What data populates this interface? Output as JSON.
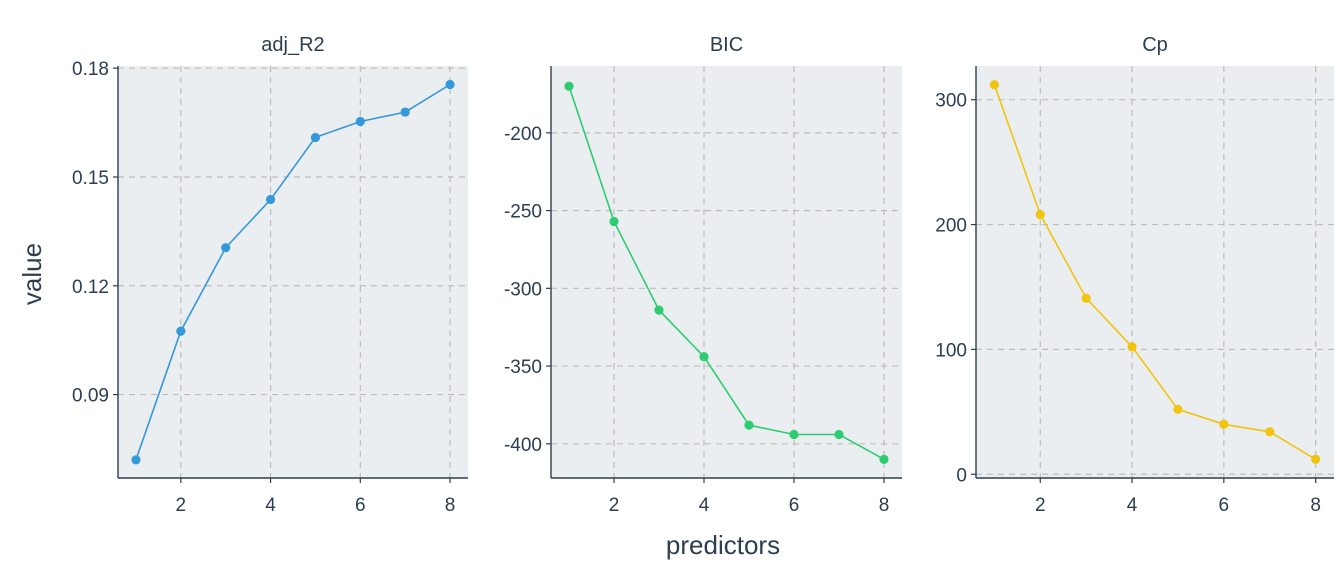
{
  "chart_data": {
    "type": "line",
    "xlabel": "predictors",
    "ylabel": "value",
    "grid": true,
    "panels": [
      {
        "name": "adj_R2",
        "color": "#3498db",
        "x": [
          1,
          2,
          3,
          4,
          5,
          6,
          7,
          8
        ],
        "values": [
          0.072,
          0.1075,
          0.1305,
          0.1438,
          0.1609,
          0.1653,
          0.1679,
          0.1755
        ],
        "xticks": [
          2,
          4,
          6,
          8
        ],
        "yticks": [
          0.09,
          0.12,
          0.15,
          0.18
        ],
        "ytick_labels": [
          "0.09",
          "0.12",
          "0.15",
          "0.18"
        ],
        "xlim": [
          0.6,
          8.4
        ],
        "ylim": [
          0.067,
          0.1806
        ]
      },
      {
        "name": "BIC",
        "color": "#2ecc71",
        "x": [
          1,
          2,
          3,
          4,
          5,
          6,
          7,
          8
        ],
        "values": [
          -170,
          -257,
          -314,
          -344,
          -388,
          -394,
          -394,
          -410
        ],
        "xticks": [
          2,
          4,
          6,
          8
        ],
        "yticks": [
          -400,
          -350,
          -300,
          -250,
          -200
        ],
        "ytick_labels": [
          "-400",
          "-350",
          "-300",
          "-250",
          "-200"
        ],
        "xlim": [
          0.6,
          8.4
        ],
        "ylim": [
          -422,
          -157
        ]
      },
      {
        "name": "Cp",
        "color": "#f1c40f",
        "x": [
          1,
          2,
          3,
          4,
          5,
          6,
          7,
          8
        ],
        "values": [
          312,
          208,
          141,
          102,
          52,
          40,
          34,
          12
        ],
        "xticks": [
          2,
          4,
          6,
          8
        ],
        "yticks": [
          0,
          100,
          200,
          300
        ],
        "ytick_labels": [
          "0",
          "100",
          "200",
          "300"
        ],
        "xlim": [
          0.6,
          8.4
        ],
        "ylim": [
          -3,
          327
        ]
      }
    ]
  }
}
